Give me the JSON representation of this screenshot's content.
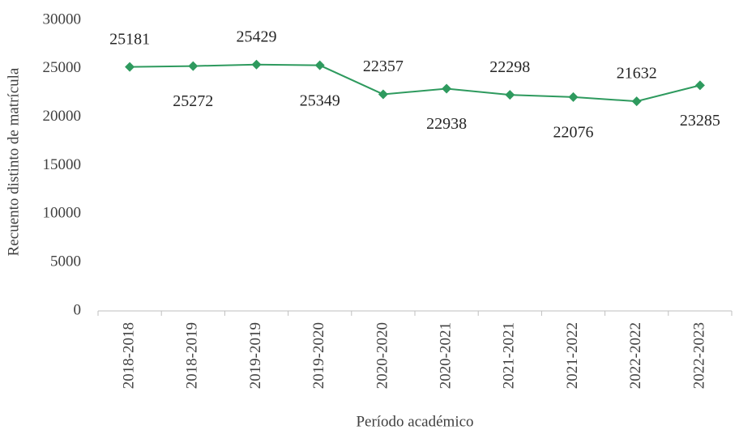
{
  "chart_data": {
    "type": "line",
    "x_label": "Período académico",
    "y_label": "Recuento distinto de matrícula",
    "categories": [
      "2018-2018",
      "2018-2019",
      "2019-2019",
      "2019-2020",
      "2020-2020",
      "2020-2021",
      "2021-2021",
      "2021-2022",
      "2022-2022",
      "2022-2023"
    ],
    "series": [
      {
        "name": "Recuento distinto de matrícula",
        "color": "#2e9a5e",
        "values": [
          25181,
          25272,
          25429,
          25349,
          22357,
          22938,
          22298,
          22076,
          21632,
          23285
        ]
      }
    ],
    "ylim": [
      0,
      30000
    ],
    "yticks": [
      0,
      5000,
      10000,
      15000,
      20000,
      25000,
      30000
    ],
    "grid": false
  }
}
